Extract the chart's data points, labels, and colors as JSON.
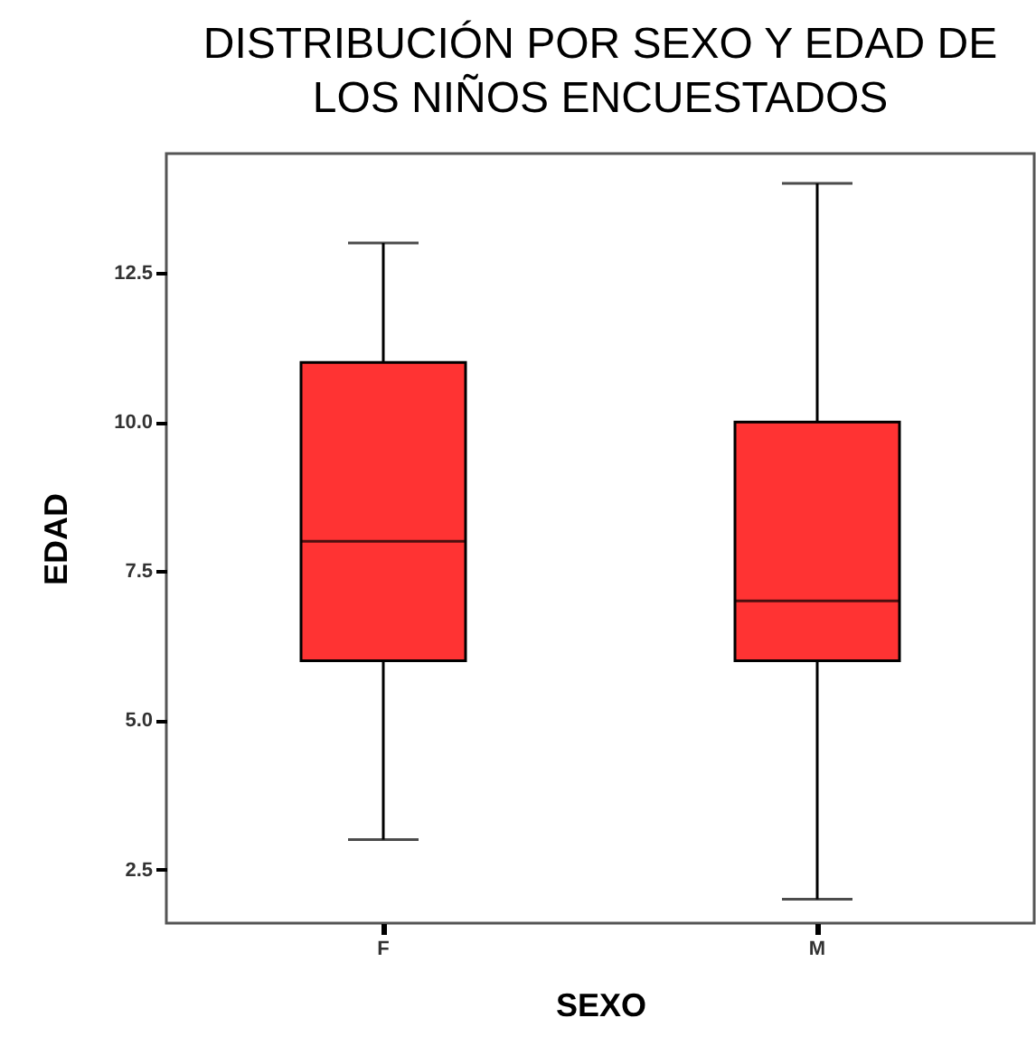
{
  "chart_data": {
    "type": "box",
    "title": [
      "DISTRIBUCIÓN POR SEXO Y EDAD DE",
      "LOS NIÑOS ENCUESTADOS"
    ],
    "xlabel": "SEXO",
    "ylabel": "EDAD",
    "categories": [
      "F",
      "M"
    ],
    "boxes": [
      {
        "low": 3,
        "q1": 6,
        "median": 8,
        "q3": 11,
        "high": 13
      },
      {
        "low": 2,
        "q1": 6,
        "median": 7,
        "q3": 10,
        "high": 14
      }
    ],
    "color": "#ff3333",
    "ylim": [
      1.6,
      14.5
    ],
    "yticks": [
      2.5,
      {
        "value": 5,
        "label": "5.0"
      },
      7.5,
      {
        "value": 10,
        "label": "10.0"
      },
      12.5
    ],
    "grid": false
  }
}
